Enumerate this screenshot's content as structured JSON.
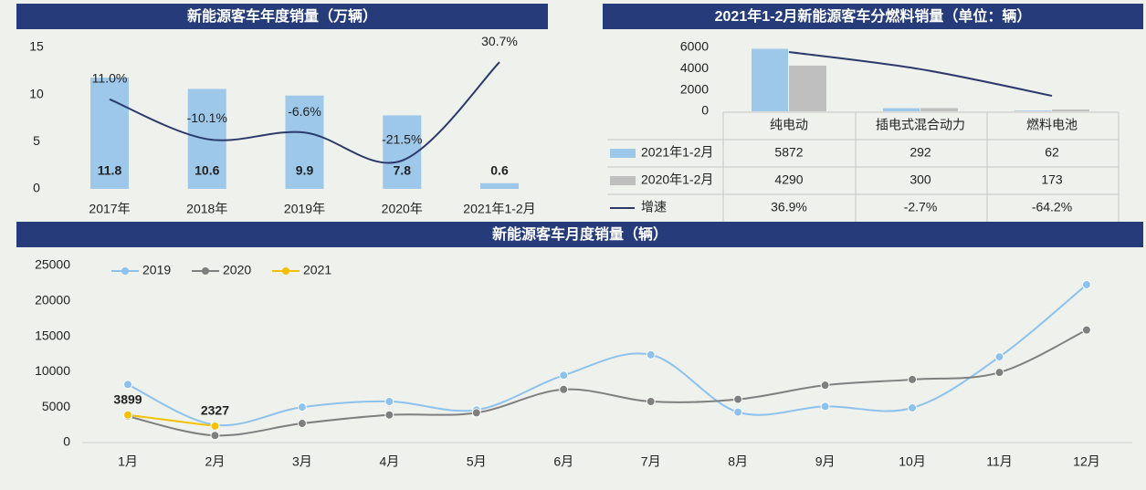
{
  "chart_data": [
    {
      "type": "bar_line",
      "title": "新能源客车年度销量（万辆）",
      "categories": [
        "2017年",
        "2018年",
        "2019年",
        "2020年",
        "2021年1-2月"
      ],
      "ylim": [
        0,
        15
      ],
      "yticks": [
        0,
        5,
        10,
        15
      ],
      "y2lim": [
        -36.5,
        38.5
      ],
      "series": [
        {
          "values": [
            11.8,
            10.6,
            9.9,
            7.8,
            0.6
          ],
          "color": "#9dc8ea"
        },
        {
          "values": [
            11.0,
            -10.1,
            -6.6,
            -21.5,
            30.7
          ],
          "value_labels": [
            "11.0%",
            "-10.1%",
            "-6.6%",
            "-21.5%",
            "30.7%"
          ],
          "color": "#2b3a6b",
          "axis": "y2"
        }
      ]
    },
    {
      "type": "bar_table",
      "title": "2021年1-2月新能源客车分燃料销量（单位：辆）",
      "categories": [
        "纯电动",
        "插电式混合动力",
        "燃料电池"
      ],
      "ylim": [
        0,
        6000
      ],
      "yticks": [
        0,
        2000,
        4000,
        6000
      ],
      "y2lim": [
        -100,
        47.5
      ],
      "series": [
        {
          "name": "2021年1-2月",
          "values": [
            5872,
            292,
            62
          ],
          "color": "#9dc8ea"
        },
        {
          "name": "2020年1-2月",
          "values": [
            4290,
            300,
            173
          ],
          "color": "#bfbfbf"
        },
        {
          "name": "增速",
          "values": [
            36.9,
            -2.7,
            -64.2
          ],
          "value_labels": [
            "36.9%",
            "-2.7%",
            "-64.2%"
          ],
          "color": "#2b3a6b",
          "axis": "y2"
        }
      ]
    },
    {
      "type": "line",
      "title": "新能源客车月度销量（辆）",
      "categories": [
        "1月",
        "2月",
        "3月",
        "4月",
        "5月",
        "6月",
        "7月",
        "8月",
        "9月",
        "10月",
        "11月",
        "12月"
      ],
      "ylim": [
        0,
        25000
      ],
      "yticks": [
        0,
        5000,
        10000,
        15000,
        20000,
        25000
      ],
      "legend": "top-left",
      "series": [
        {
          "name": "2019",
          "color": "#8ec2ee",
          "values": [
            8200,
            2500,
            5000,
            5800,
            4600,
            9500,
            12400,
            4300,
            5100,
            4900,
            12100,
            22300
          ]
        },
        {
          "name": "2020",
          "color": "#7f7f7f",
          "values": [
            3700,
            1000,
            2700,
            3900,
            4200,
            7500,
            5800,
            6100,
            8100,
            8900,
            9900,
            15900
          ]
        },
        {
          "name": "2021",
          "color": "#f5c000",
          "data_labels": true,
          "values": [
            3899,
            2327,
            null,
            null,
            null,
            null,
            null,
            null,
            null,
            null,
            null,
            null
          ]
        }
      ]
    }
  ]
}
